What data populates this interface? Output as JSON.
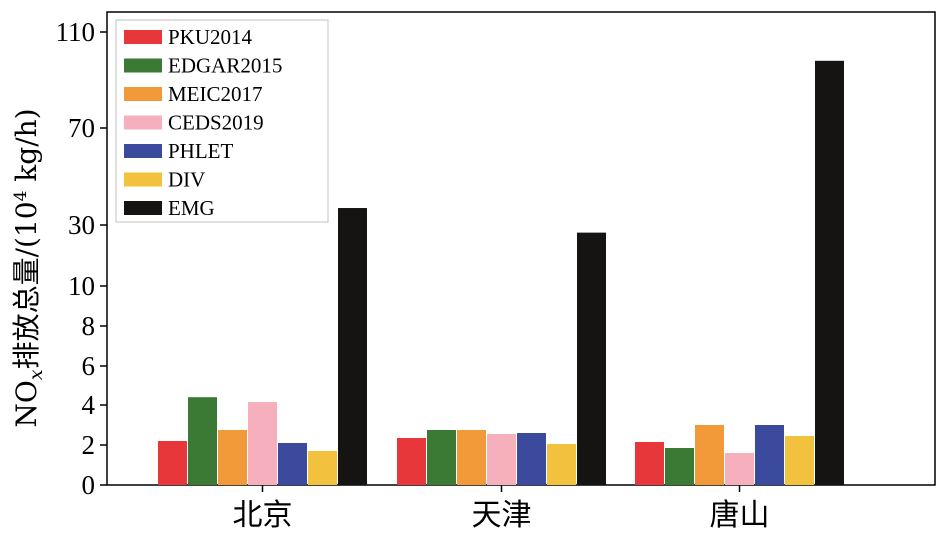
{
  "chart_data": {
    "type": "bar",
    "ylabel": "NOx排放总量/(10⁴ kg/h)",
    "ylabel_main": "NO",
    "ylabel_sub": "x",
    "ylabel_rest": "排放总量/(10",
    "ylabel_sup": "4",
    "ylabel_end": " kg/h)",
    "categories": [
      "北京",
      "天津",
      "唐山"
    ],
    "yticks": [
      "0",
      "2",
      "4",
      "6",
      "8",
      "10",
      "30",
      "70",
      "110"
    ],
    "ytick_values": [
      0,
      2,
      4,
      6,
      8,
      10,
      30,
      70,
      110
    ],
    "y_scale": "piecewise: linear 0–10, compressed 10–110",
    "legend_position": "top-left",
    "series": [
      {
        "name": "PKU2014",
        "color": "#e8373a",
        "values": [
          2.2,
          2.35,
          2.15
        ]
      },
      {
        "name": "EDGAR2015",
        "color": "#3a7a35",
        "values": [
          4.4,
          2.75,
          1.85
        ]
      },
      {
        "name": "MEIC2017",
        "color": "#f2993a",
        "values": [
          2.75,
          2.75,
          3.0
        ]
      },
      {
        "name": "CEDS2019",
        "color": "#f6afbd",
        "values": [
          4.15,
          2.55,
          1.6
        ]
      },
      {
        "name": "PHLET",
        "color": "#3b4a9c",
        "values": [
          2.1,
          2.6,
          3.0
        ]
      },
      {
        "name": "DIV",
        "color": "#f2c23e",
        "values": [
          1.7,
          2.05,
          2.45
        ]
      },
      {
        "name": "EMG",
        "color": "#161412",
        "values": [
          37,
          27.5,
          98
        ]
      }
    ]
  }
}
